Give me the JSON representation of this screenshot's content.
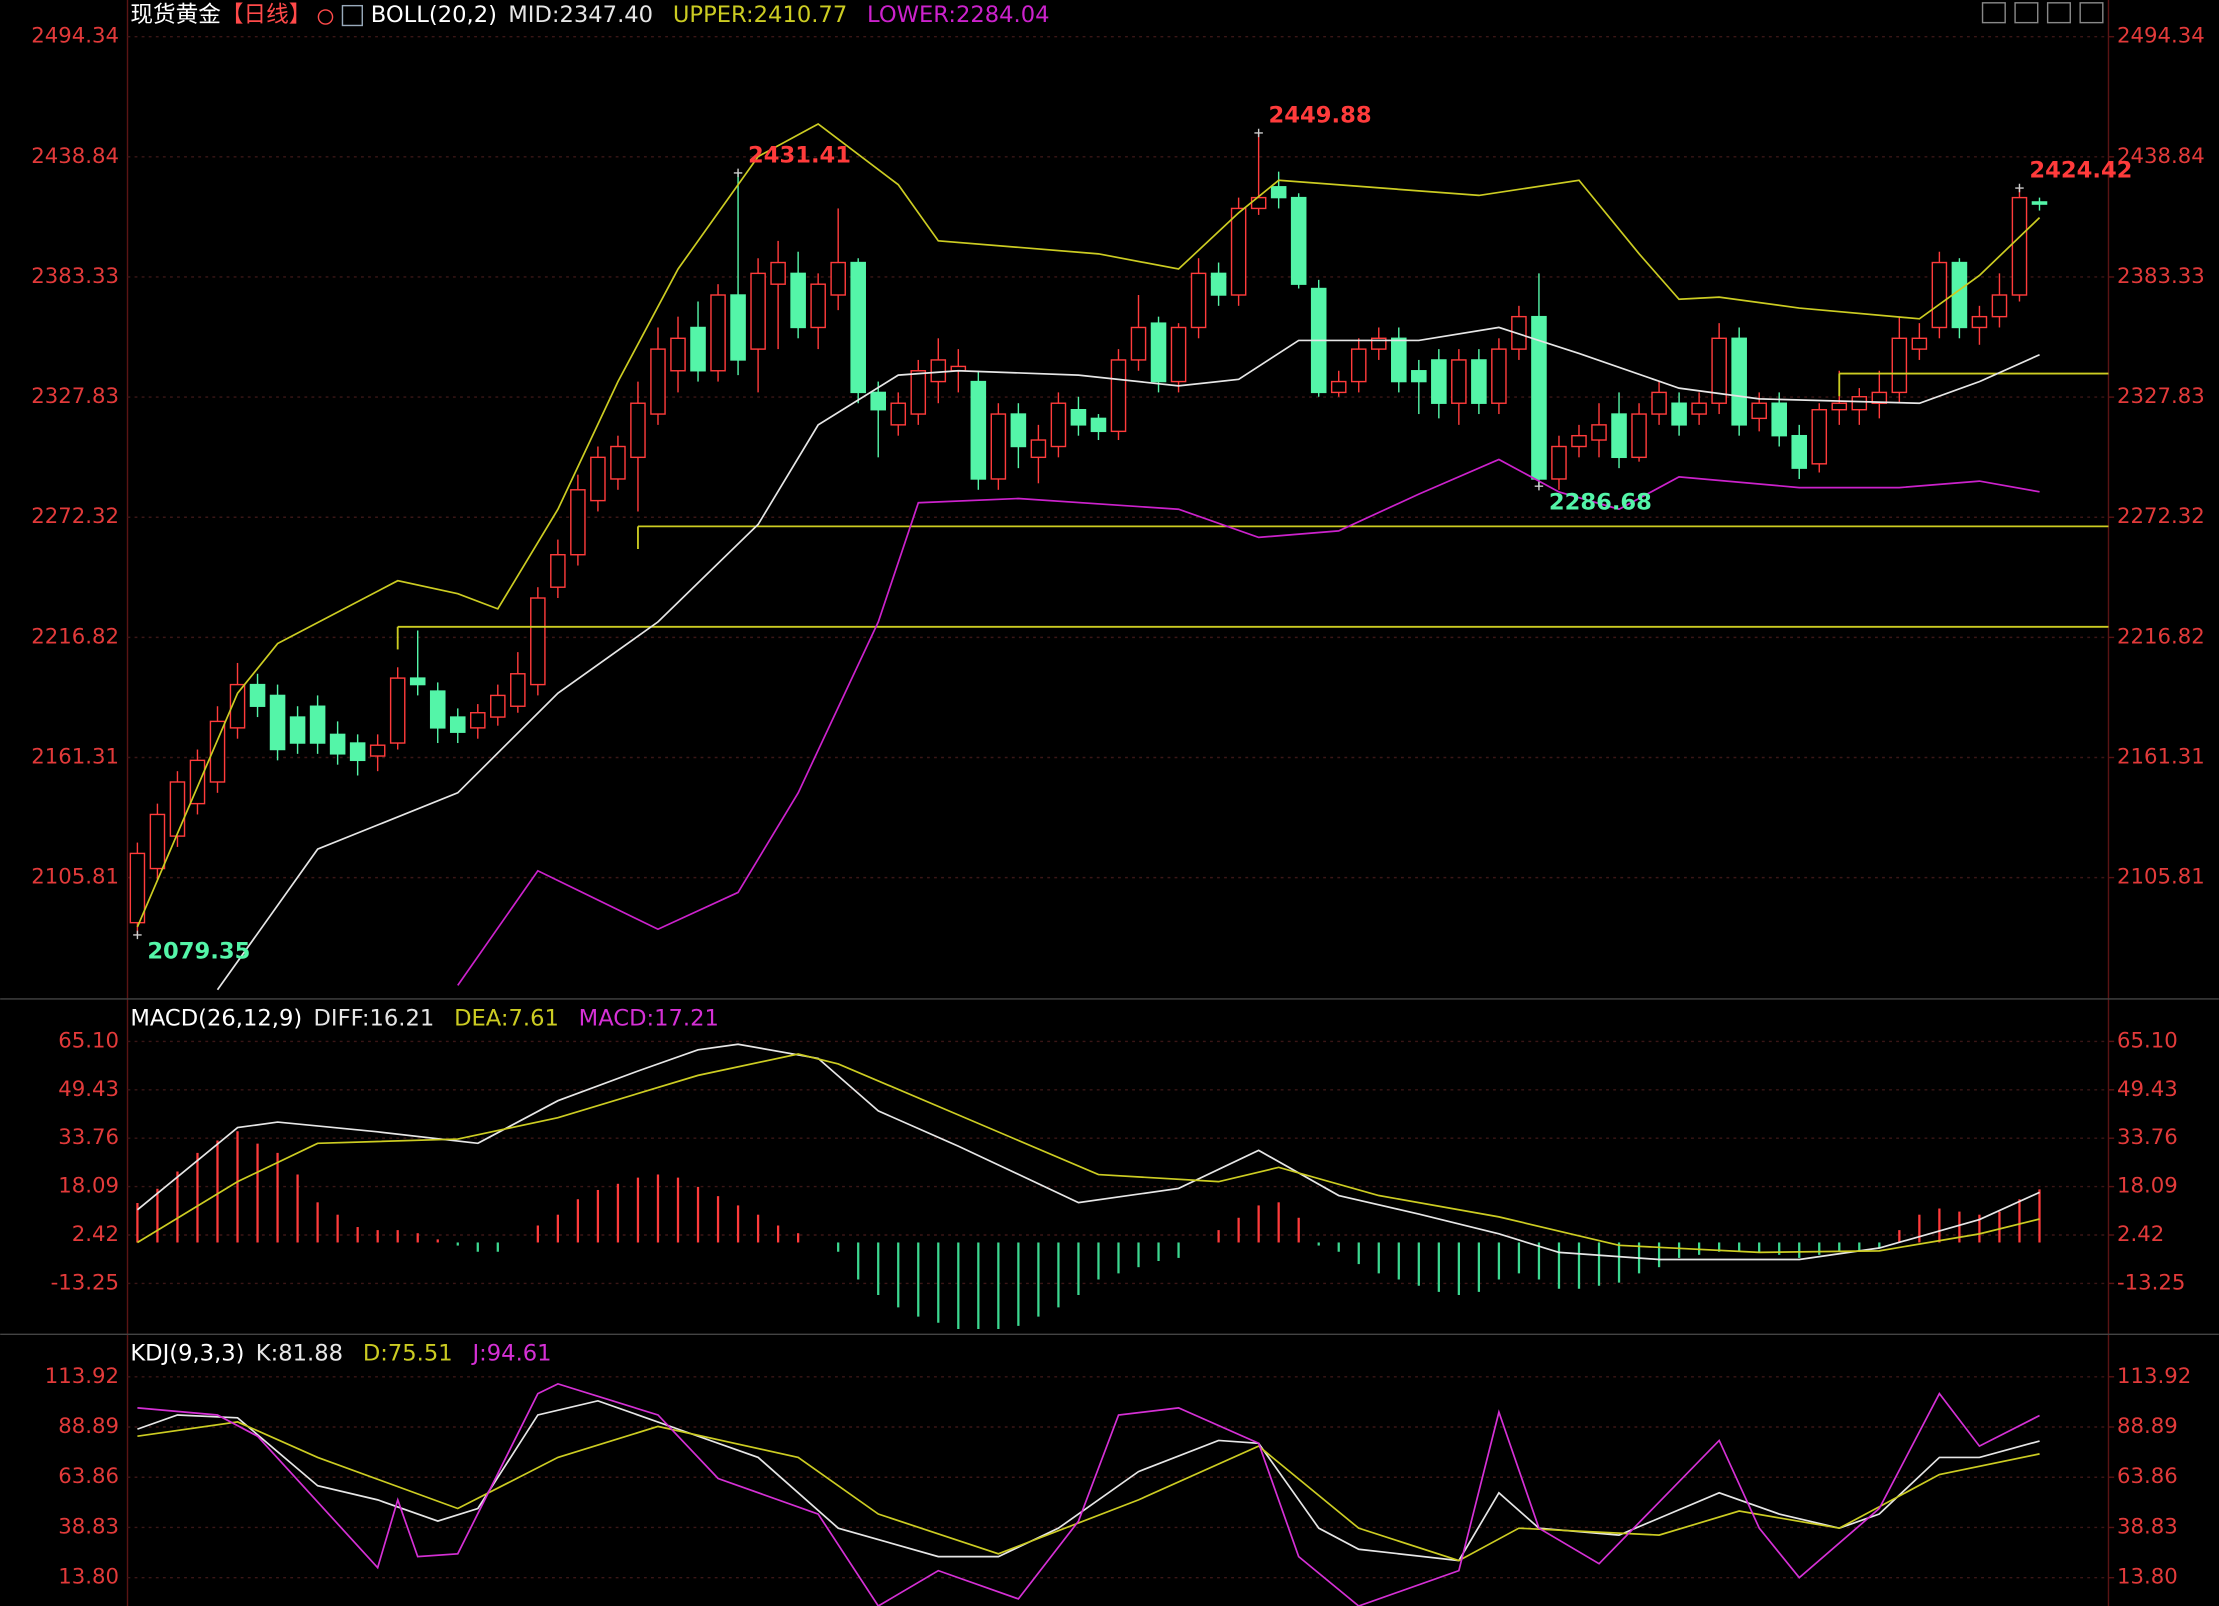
{
  "chart_data": [
    {
      "type": "candlestick",
      "title": "现货黄金",
      "period": "【日线】",
      "indicator": "BOLL(20,2)",
      "ylim": [
        2050.4,
        2511.3
      ],
      "yticks": [
        2105.81,
        2161.31,
        2216.82,
        2272.32,
        2327.83,
        2383.33,
        2438.84,
        2494.34
      ],
      "grid": true,
      "up_color": "#ff3b3b",
      "down_color": "#54f5a8",
      "open": [
        2085,
        2110,
        2125,
        2140,
        2150,
        2175,
        2195,
        2190,
        2180,
        2185,
        2172,
        2168,
        2162,
        2168,
        2198,
        2192,
        2180,
        2175,
        2180,
        2185,
        2195,
        2240,
        2255,
        2280,
        2290,
        2300,
        2320,
        2340,
        2360,
        2340,
        2375,
        2350,
        2380,
        2385,
        2360,
        2375,
        2390,
        2330,
        2315,
        2320,
        2335,
        2340,
        2335,
        2290,
        2320,
        2300,
        2305,
        2322,
        2318,
        2312,
        2345,
        2362,
        2335,
        2360,
        2385,
        2375,
        2415,
        2425,
        2420,
        2378,
        2330,
        2335,
        2350,
        2355,
        2340,
        2345,
        2325,
        2345,
        2325,
        2350,
        2365,
        2290,
        2305,
        2308,
        2320,
        2300,
        2320,
        2325,
        2320,
        2325,
        2355,
        2318,
        2325,
        2310,
        2297,
        2322,
        2322,
        2325,
        2330,
        2350,
        2360,
        2390,
        2360,
        2365,
        2375,
        2418
      ],
      "high": [
        2122,
        2140,
        2155,
        2165,
        2185,
        2205,
        2200,
        2195,
        2185,
        2190,
        2178,
        2172,
        2172,
        2203,
        2220,
        2196,
        2184,
        2186,
        2195,
        2210,
        2240,
        2262,
        2292,
        2305,
        2310,
        2335,
        2360,
        2365,
        2372,
        2380,
        2431.41,
        2392,
        2400,
        2395,
        2385,
        2415,
        2392,
        2335,
        2330,
        2345,
        2355,
        2350,
        2340,
        2325,
        2325,
        2315,
        2330,
        2328,
        2320,
        2350,
        2375,
        2365,
        2362,
        2392,
        2390,
        2420,
        2449.88,
        2432,
        2422,
        2382,
        2340,
        2355,
        2360,
        2360,
        2345,
        2350,
        2350,
        2350,
        2355,
        2370,
        2385,
        2310,
        2315,
        2325,
        2330,
        2325,
        2335,
        2330,
        2330,
        2362,
        2360,
        2330,
        2330,
        2315,
        2325,
        2340,
        2332,
        2340,
        2365,
        2362,
        2395,
        2392,
        2370,
        2385,
        2424.42,
        2420
      ],
      "low": [
        2079.35,
        2105,
        2120,
        2135,
        2145,
        2170,
        2180,
        2160,
        2163,
        2163,
        2158,
        2153,
        2155,
        2165,
        2190,
        2168,
        2168,
        2170,
        2176,
        2182,
        2190,
        2235,
        2250,
        2275,
        2285,
        2275,
        2315,
        2330,
        2335,
        2335,
        2338,
        2330,
        2350,
        2355,
        2350,
        2368,
        2325,
        2300,
        2310,
        2315,
        2325,
        2330,
        2285,
        2285,
        2295,
        2288,
        2300,
        2310,
        2308,
        2308,
        2340,
        2330,
        2330,
        2355,
        2370,
        2370,
        2412,
        2415,
        2378,
        2328,
        2328,
        2330,
        2345,
        2330,
        2320,
        2318,
        2315,
        2320,
        2320,
        2345,
        2286.68,
        2285,
        2300,
        2300,
        2295,
        2298,
        2315,
        2310,
        2315,
        2320,
        2310,
        2312,
        2305,
        2290,
        2293,
        2315,
        2315,
        2318,
        2325,
        2345,
        2355,
        2355,
        2352,
        2360,
        2372,
        2414
      ],
      "close": [
        2117,
        2135,
        2150,
        2160,
        2178,
        2195,
        2185,
        2165,
        2168,
        2168,
        2163,
        2160,
        2167,
        2198,
        2195,
        2175,
        2173,
        2182,
        2190,
        2200,
        2235,
        2255,
        2285,
        2300,
        2305,
        2325,
        2350,
        2355,
        2340,
        2375,
        2345,
        2385,
        2390,
        2360,
        2380,
        2390,
        2330,
        2322,
        2325,
        2340,
        2345,
        2342,
        2290,
        2320,
        2305,
        2308,
        2325,
        2315,
        2312,
        2345,
        2360,
        2335,
        2360,
        2385,
        2375,
        2415,
        2420,
        2420,
        2380,
        2330,
        2335,
        2350,
        2355,
        2335,
        2335,
        2325,
        2345,
        2325,
        2350,
        2365,
        2290,
        2305,
        2310,
        2315,
        2300,
        2320,
        2330,
        2315,
        2325,
        2355,
        2315,
        2325,
        2310,
        2295,
        2322,
        2325,
        2328,
        2330,
        2355,
        2355,
        2390,
        2360,
        2365,
        2375,
        2420,
        2417
      ],
      "series": [
        {
          "name": "MID:2347.40",
          "color": "#e6e6e6",
          "x": [
            4,
            9,
            16,
            21,
            26,
            31,
            34,
            38,
            41,
            47,
            52,
            55,
            58,
            64,
            68,
            72,
            77,
            81,
            89,
            92,
            95
          ],
          "values": [
            2054,
            2119,
            2145,
            2191,
            2224,
            2269,
            2315,
            2338,
            2340,
            2338,
            2333,
            2336,
            2354,
            2354,
            2360,
            2348,
            2332,
            2327,
            2325,
            2335,
            2347.4
          ]
        },
        {
          "name": "UPPER:2410.77",
          "color": "#cccc22",
          "x": [
            0,
            5,
            7,
            13,
            16,
            18,
            21,
            24,
            27,
            31,
            34,
            38,
            40,
            44,
            48,
            52,
            55,
            57,
            67,
            72,
            75,
            77,
            79,
            83,
            89,
            92,
            95
          ],
          "values": [
            2083,
            2191,
            2214,
            2243,
            2237,
            2230,
            2276,
            2335,
            2387,
            2439,
            2454,
            2426,
            2400,
            2397,
            2394,
            2387,
            2413,
            2428,
            2421,
            2428,
            2394,
            2373,
            2374,
            2369,
            2364,
            2384,
            2410.77
          ]
        },
        {
          "name": "LOWER:2284.04",
          "color": "#cc22cc",
          "x": [
            16,
            20,
            26,
            30,
            33,
            37,
            39,
            44,
            52,
            56,
            60,
            64,
            68,
            71,
            74,
            77,
            83,
            88,
            92,
            95
          ],
          "values": [
            2056,
            2109,
            2082,
            2099,
            2145,
            2224,
            2279,
            2281,
            2276,
            2263,
            2266,
            2283,
            2299,
            2284,
            2276,
            2291,
            2286,
            2286,
            2289,
            2284.04
          ]
        }
      ],
      "hlines": [
        {
          "x": 25,
          "value": 2268.1,
          "color": "#cccc22"
        },
        {
          "x": 13,
          "value": 2221.7,
          "color": "#cccc22"
        },
        {
          "x": 85,
          "value": 2338.7,
          "color": "#cccc22"
        }
      ],
      "annotations": [
        {
          "index": 30,
          "value": 2431.41,
          "color": "#ff3b3b"
        },
        {
          "index": 56,
          "value": 2449.88,
          "color": "#ff3b3b"
        },
        {
          "index": 94,
          "value": 2424.42,
          "color": "#ff3b3b"
        },
        {
          "index": 0,
          "value": 2079.35,
          "color": "#54f5a8"
        },
        {
          "index": 70,
          "value": 2286.68,
          "color": "#54f5a8"
        }
      ]
    },
    {
      "type": "macd",
      "indicator": "MACD(26,12,9)",
      "ylim": [
        -29.28,
        78.84
      ],
      "yticks": [
        {
          "value": 65.1,
          "label": "65.10"
        },
        49.43,
        33.76,
        18.09,
        2.42,
        -13.25
      ],
      "grid": true,
      "series": [
        {
          "name": "DIFF:16.21",
          "color": "#e6e6e6",
          "x": [
            0,
            5,
            7,
            12,
            17,
            21,
            25,
            28,
            30,
            34,
            37,
            41,
            47,
            52,
            56,
            60,
            64,
            68,
            71,
            76,
            83,
            87,
            92,
            95
          ],
          "values": [
            10.6,
            37.2,
            39,
            35.8,
            32.1,
            45.9,
            55.5,
            62.4,
            64.2,
            59.6,
            42.6,
            31.2,
            12.9,
            17.5,
            29.8,
            15.2,
            9.2,
            2.8,
            -3.2,
            -5.5,
            -5.5,
            -1.8,
            7.4,
            16.21
          ]
        },
        {
          "name": "DEA:7.61",
          "color": "#cccc22",
          "x": [
            0,
            5,
            9,
            16,
            21,
            28,
            33,
            35,
            41,
            48,
            54,
            57,
            62,
            68,
            74,
            81,
            87,
            92,
            95
          ],
          "values": [
            0,
            19.7,
            32.1,
            33.5,
            40.4,
            54.1,
            61,
            57.8,
            41.3,
            22,
            19.7,
            24.3,
            15.2,
            8.3,
            -0.9,
            -3.2,
            -2.7,
            2.8,
            7.61
          ]
        }
      ],
      "bars": {
        "name": "MACD:17.21",
        "color": "#d530d5",
        "up_color": "#ff3b3b",
        "down_color": "#3cd890",
        "values": [
          12.8,
          17.4,
          23,
          29,
          33,
          36,
          32,
          29,
          22,
          13,
          9,
          5,
          4,
          4,
          3,
          1,
          -1,
          -3,
          -3,
          0,
          5.5,
          9,
          14,
          17,
          19,
          21,
          22,
          21,
          18,
          15,
          12,
          9,
          5.5,
          3,
          0,
          -3,
          -12,
          -17,
          -21,
          -24,
          -26,
          -28,
          -28,
          -28,
          -27,
          -24,
          -21,
          -17,
          -12,
          -10,
          -8,
          -6,
          -5,
          0,
          4,
          8,
          12,
          13,
          8,
          -1,
          -3,
          -7,
          -10,
          -12,
          -14,
          -16,
          -17,
          -16,
          -12,
          -10,
          -12,
          -15,
          -15,
          -14,
          -13,
          -10,
          -8,
          -5,
          -4,
          -3,
          -3,
          -3,
          -4,
          -5,
          -4,
          -3,
          -3,
          -2,
          4,
          9,
          11,
          10,
          9,
          10,
          14,
          17.21
        ]
      }
    },
    {
      "type": "line",
      "indicator": "KDJ(9,3,3)",
      "ylim": [
        -0.3,
        133.66
      ],
      "yticks": [
        113.92,
        88.89,
        63.86,
        38.83,
        {
          "value": 13.8,
          "label": "13.80"
        }
      ],
      "grid": true,
      "series": [
        {
          "name": "K:81.88",
          "color": "#e6e6e6",
          "x": [
            0,
            2,
            5,
            9,
            12,
            15,
            17,
            20,
            23,
            27,
            31,
            35,
            40,
            43,
            46,
            50,
            54,
            56,
            59,
            61,
            66,
            68,
            70,
            74,
            79,
            82,
            85,
            87,
            90,
            92,
            95
          ],
          "values": [
            87.8,
            94.9,
            93.5,
            59.6,
            52.6,
            42,
            48.3,
            94.9,
            101.9,
            87.8,
            73.7,
            38.5,
            24.3,
            24.3,
            38.5,
            66.7,
            82.2,
            80.8,
            38.5,
            28,
            22.3,
            56.1,
            38.5,
            35,
            56.1,
            45.5,
            38.5,
            45.5,
            73.7,
            73.7,
            81.88
          ]
        },
        {
          "name": "D:75.51",
          "color": "#cccc22",
          "x": [
            0,
            5,
            9,
            16,
            21,
            26,
            33,
            37,
            43,
            50,
            56,
            61,
            66,
            69,
            76,
            80,
            85,
            90,
            95
          ],
          "values": [
            84.3,
            91.4,
            73.7,
            48.3,
            73.7,
            89.2,
            73.7,
            45.5,
            25.7,
            52.6,
            79.4,
            38.5,
            22.3,
            38.5,
            35,
            47,
            38.5,
            65.2,
            75.51
          ]
        },
        {
          "name": "J:94.61",
          "color": "#d530d5",
          "x": [
            0,
            4,
            6,
            12,
            13,
            14,
            16,
            20,
            21,
            26,
            29,
            34,
            37,
            40,
            44,
            47,
            49,
            52,
            56,
            58,
            61,
            66,
            68,
            70,
            73,
            79,
            81,
            83,
            87,
            90,
            92,
            95
          ],
          "values": [
            98.4,
            94.9,
            84.3,
            18.8,
            52.6,
            24.3,
            25.7,
            105.5,
            110.4,
            94.9,
            63.2,
            45.5,
            -0.3,
            17.3,
            3.2,
            42,
            94.9,
            98.4,
            80.8,
            24.3,
            -0.3,
            17.3,
            96.3,
            38.5,
            20.8,
            82.2,
            38.5,
            13.8,
            48.3,
            105.5,
            79.4,
            94.61
          ]
        }
      ]
    }
  ]
}
